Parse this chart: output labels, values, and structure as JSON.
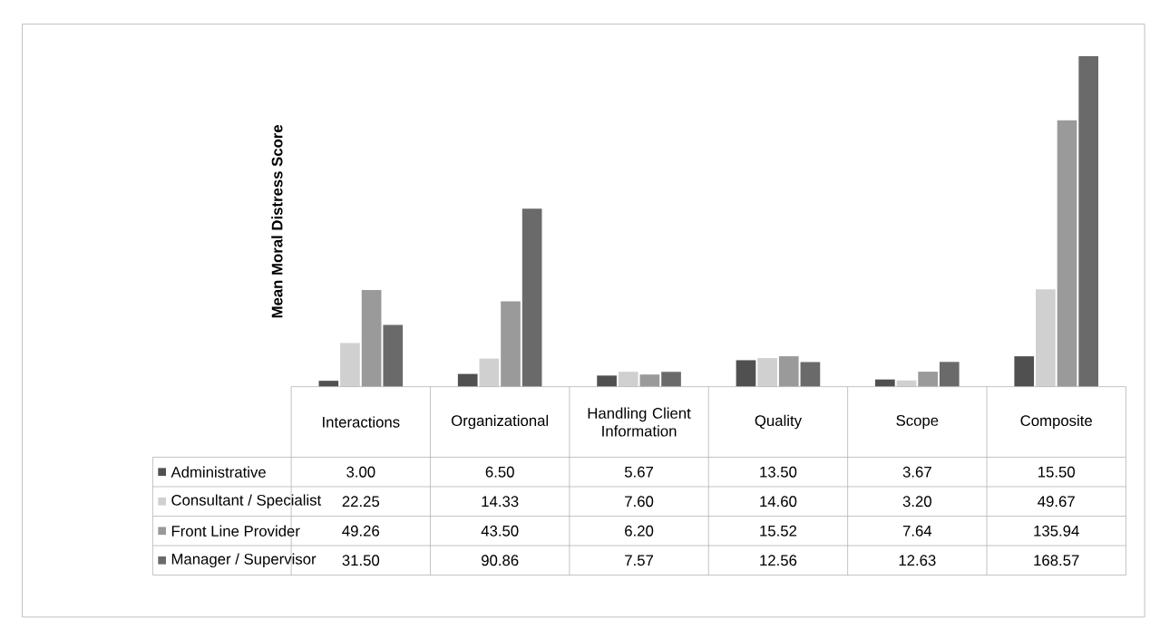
{
  "chart_data": {
    "type": "bar",
    "ylabel": "Mean Moral Distress Score",
    "categories": [
      "Interactions",
      "Organizational",
      "Handling Client Information",
      "Quality",
      "Scope",
      "Composite"
    ],
    "series": [
      {
        "name": "Administrative",
        "color": "#505050",
        "values": [
          3.0,
          6.5,
          5.67,
          13.5,
          3.67,
          15.5
        ],
        "value_labels": [
          "3.00",
          "6.50",
          "5.67",
          "13.50",
          "3.67",
          "15.50"
        ]
      },
      {
        "name": "Consultant / Specialist",
        "color": "#d0d0d0",
        "values": [
          22.25,
          14.33,
          7.6,
          14.6,
          3.2,
          49.67
        ],
        "value_labels": [
          "22.25",
          "14.33",
          "7.60",
          "14.60",
          "3.20",
          "49.67"
        ]
      },
      {
        "name": "Front Line Provider",
        "color": "#9a9a9a",
        "values": [
          49.26,
          43.5,
          6.2,
          15.52,
          7.64,
          135.94
        ],
        "value_labels": [
          "49.26",
          "43.50",
          "6.20",
          "15.52",
          "7.64",
          "135.94"
        ]
      },
      {
        "name": "Manager / Supervisor",
        "color": "#6a6a6a",
        "values": [
          31.5,
          90.86,
          7.57,
          12.56,
          12.63,
          168.57
        ],
        "value_labels": [
          "31.50",
          "90.86",
          "7.57",
          "12.56",
          "12.63",
          "168.57"
        ]
      }
    ],
    "legend": "bottom left"
  }
}
